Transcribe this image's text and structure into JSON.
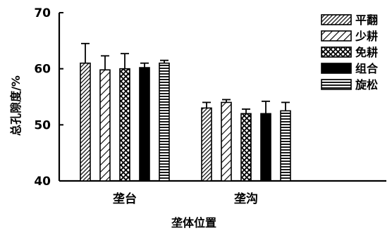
{
  "chart_data": {
    "type": "bar",
    "title": "",
    "xlabel": "垄体位置",
    "ylabel": "总孔隙度/%",
    "ylim": [
      40,
      70
    ],
    "yticks": [
      40,
      50,
      60,
      70
    ],
    "categories": [
      "垄台",
      "垄沟"
    ],
    "series": [
      {
        "name": "平翻",
        "pattern": "diagonal-dense",
        "values": [
          61.0,
          53.0
        ],
        "errors": [
          3.5,
          1.0
        ]
      },
      {
        "name": "少耕",
        "pattern": "diagonal-wide",
        "values": [
          59.8,
          54.0
        ],
        "errors": [
          2.5,
          0.5
        ]
      },
      {
        "name": "免耕",
        "pattern": "cross-hatch",
        "values": [
          60.0,
          52.0
        ],
        "errors": [
          2.7,
          0.8
        ]
      },
      {
        "name": "组合",
        "pattern": "solid",
        "values": [
          60.2,
          52.0
        ],
        "errors": [
          0.8,
          2.2
        ]
      },
      {
        "name": "旋松",
        "pattern": "horizontal-lines",
        "values": [
          61.0,
          52.5
        ],
        "errors": [
          0.5,
          1.5
        ]
      }
    ],
    "grid": false,
    "legend_position": "top-right"
  }
}
